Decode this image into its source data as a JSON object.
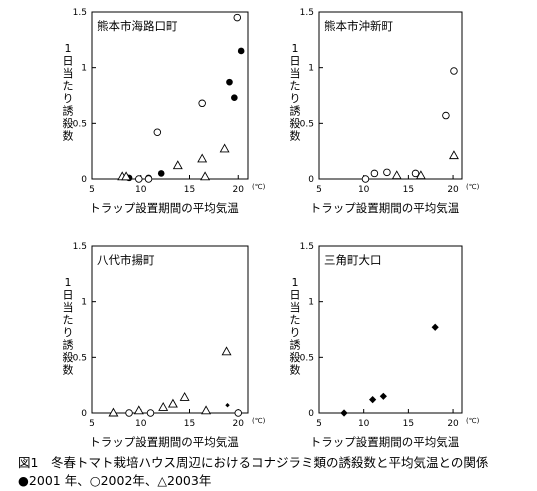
{
  "caption": {
    "title": "図1　冬春トマト栽培ハウス周辺におけるコナジラミ類の誘殺数と平均気温との関係",
    "legend": "●2001 年、○2002年、△2003年"
  },
  "chart_data": [
    {
      "type": "scatter",
      "title": "熊本市海路口町",
      "xlabel": "トラップ設置期間の平均気温",
      "ylabel": "1日当たり誘殺数",
      "x_unit": "(℃)",
      "xlim": [
        5,
        21
      ],
      "ylim": [
        0,
        1.5
      ],
      "xticks": [
        "5",
        "10",
        "15",
        "20"
      ],
      "yticks": [
        "0",
        "0.5",
        "1",
        "1.5"
      ],
      "series": [
        {
          "marker": "filled-circle",
          "points": [
            [
              8.8,
              0.01
            ],
            [
              10.8,
              0.01
            ],
            [
              12.1,
              0.05
            ],
            [
              19.1,
              0.87
            ],
            [
              19.6,
              0.73
            ],
            [
              20.3,
              1.15
            ]
          ]
        },
        {
          "marker": "open-circle",
          "points": [
            [
              9.8,
              0.0
            ],
            [
              10.8,
              0.0
            ],
            [
              11.7,
              0.42
            ],
            [
              16.3,
              0.68
            ],
            [
              19.9,
              1.45
            ]
          ]
        },
        {
          "marker": "open-triangle",
          "points": [
            [
              8.1,
              0.02
            ],
            [
              8.5,
              0.02
            ],
            [
              13.8,
              0.12
            ],
            [
              16.3,
              0.18
            ],
            [
              16.6,
              0.02
            ],
            [
              18.6,
              0.27
            ]
          ]
        }
      ]
    },
    {
      "type": "scatter",
      "title": "熊本市沖新町",
      "xlabel": "トラップ設置期間の平均気温",
      "ylabel": "1日当たり誘殺数",
      "x_unit": "(℃)",
      "xlim": [
        5,
        21
      ],
      "ylim": [
        0,
        1.5
      ],
      "xticks": [
        "5",
        "10",
        "15",
        "20"
      ],
      "yticks": [
        "0",
        "0.5",
        "1",
        "1.5"
      ],
      "series": [
        {
          "marker": "open-circle",
          "points": [
            [
              10.2,
              0.0
            ],
            [
              11.2,
              0.05
            ],
            [
              12.6,
              0.06
            ],
            [
              15.8,
              0.05
            ],
            [
              19.2,
              0.57
            ],
            [
              20.1,
              0.97
            ]
          ]
        },
        {
          "marker": "open-triangle",
          "points": [
            [
              13.7,
              0.03
            ],
            [
              16.4,
              0.03
            ],
            [
              20.1,
              0.21
            ]
          ]
        }
      ]
    },
    {
      "type": "scatter",
      "title": "八代市揚町",
      "xlabel": "トラップ設置期間の平均気温",
      "ylabel": "1日当たり誘殺数",
      "x_unit": "(℃)",
      "xlim": [
        5,
        21
      ],
      "ylim": [
        0,
        1.5
      ],
      "xticks": [
        "5",
        "10",
        "15",
        "20"
      ],
      "yticks": [
        "0",
        "0.5",
        "1",
        "1.5"
      ],
      "series": [
        {
          "marker": "small-filled-diamond",
          "points": [
            [
              18.9,
              0.07
            ]
          ]
        },
        {
          "marker": "open-circle",
          "points": [
            [
              8.8,
              0.0
            ],
            [
              11.0,
              0.0
            ],
            [
              20.0,
              0.0
            ]
          ]
        },
        {
          "marker": "open-triangle",
          "points": [
            [
              7.2,
              0.0
            ],
            [
              9.8,
              0.02
            ],
            [
              12.3,
              0.05
            ],
            [
              13.3,
              0.08
            ],
            [
              14.5,
              0.14
            ],
            [
              16.7,
              0.02
            ],
            [
              18.8,
              0.55
            ]
          ]
        }
      ]
    },
    {
      "type": "scatter",
      "title": "三角町大口",
      "xlabel": "トラップ設置期間の平均気温",
      "ylabel": "1日当たり誘殺数",
      "x_unit": "(℃)",
      "xlim": [
        5,
        21
      ],
      "ylim": [
        0,
        1.5
      ],
      "xticks": [
        "5",
        "10",
        "15",
        "20"
      ],
      "yticks": [
        "0",
        "0.5",
        "1",
        "1.5"
      ],
      "series": [
        {
          "marker": "filled-diamond",
          "points": [
            [
              7.8,
              0.0
            ],
            [
              11.0,
              0.12
            ],
            [
              12.2,
              0.15
            ],
            [
              18.0,
              0.77
            ]
          ]
        }
      ]
    }
  ]
}
